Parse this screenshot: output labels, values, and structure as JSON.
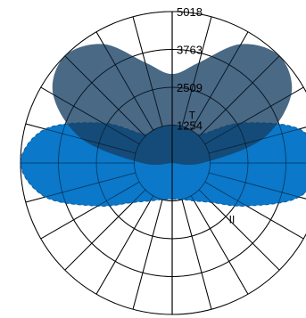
{
  "chart_data": {
    "type": "polar",
    "title": "",
    "radial_ticks": [
      "1254",
      "2509",
      "3763",
      "5018"
    ],
    "radial_max": 5018,
    "angle_grid_step_deg": 15,
    "grid": true,
    "series": [
      {
        "name": "T",
        "color": "#0b78c9",
        "fill_opacity": 1.0,
        "dashed_outline": true,
        "angles_deg": [
          0,
          15,
          30,
          45,
          60,
          75,
          90,
          105,
          120,
          135,
          150,
          165,
          180,
          195,
          210,
          225,
          240,
          255,
          270,
          285,
          300,
          315,
          330,
          345
        ],
        "values": [
          1200,
          1250,
          1450,
          1850,
          2850,
          4350,
          5018,
          4350,
          2650,
          1350,
          1250,
          1230,
          1230,
          1230,
          1250,
          1350,
          2650,
          4350,
          5018,
          4350,
          2850,
          1850,
          1450,
          1250
        ]
      },
      {
        "name": "II",
        "color": "#173f63",
        "fill_opacity": 0.78,
        "dashed_outline": false,
        "angles_deg": [
          180,
          195,
          210,
          225,
          240,
          255,
          270,
          285,
          300,
          315,
          330,
          345,
          0,
          15,
          30,
          45,
          60,
          75,
          90,
          105,
          120,
          135,
          150,
          165
        ],
        "values": [
          2950,
          3450,
          4550,
          5018,
          4550,
          3100,
          1000,
          0,
          0,
          0,
          0,
          0,
          0,
          0,
          0,
          0,
          0,
          0,
          1000,
          3100,
          4550,
          5018,
          4550,
          3450
        ]
      }
    ]
  }
}
